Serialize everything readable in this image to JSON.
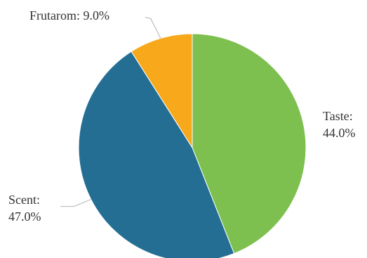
{
  "chart_data": {
    "type": "pie",
    "title": "",
    "slices": [
      {
        "label": "Taste",
        "value_label": "44.0%",
        "value": 44.0,
        "color": "#7dc04f"
      },
      {
        "label": "Scent",
        "value_label": "47.0%",
        "value": 47.0,
        "color": "#246e94"
      },
      {
        "label": "Frutarom",
        "value_label": "9.0%",
        "value": 9.0,
        "color": "#f7a81b"
      }
    ]
  }
}
